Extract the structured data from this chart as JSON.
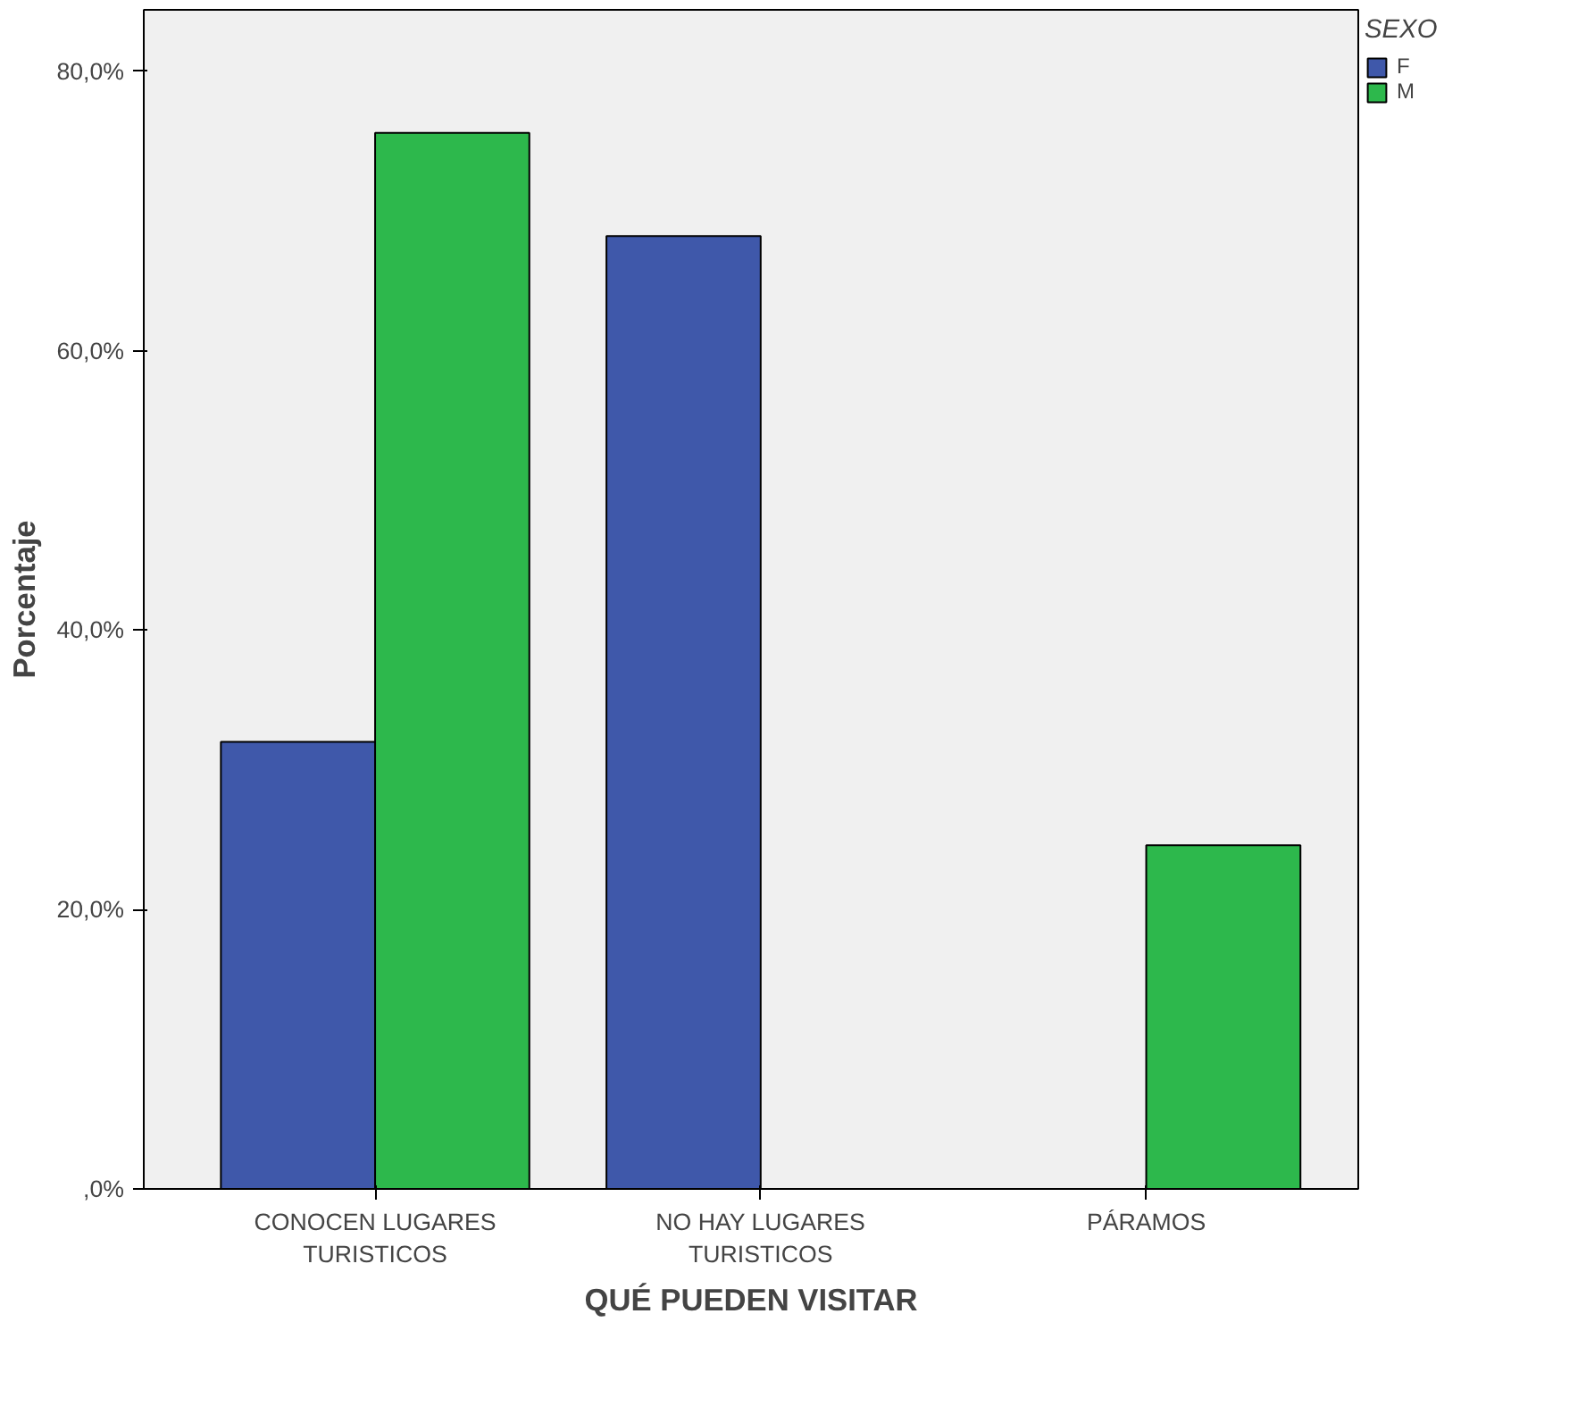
{
  "chart_data": {
    "type": "bar",
    "xlabel": "QUÉ PUEDEN VISITAR",
    "ylabel": "Porcentaje",
    "legend_title": "SEXO",
    "legend": "right",
    "grid": false,
    "categories": [
      "CONOCEN LUGARES\nTURISTICOS",
      "NO HAY LUGARES\nTURISTICOS",
      "PÁRAMOS"
    ],
    "series": [
      {
        "name": "F",
        "color": "#3f58aa",
        "values": [
          32.0,
          68.2,
          0
        ]
      },
      {
        "name": "M",
        "color": "#2db84c",
        "values": [
          75.6,
          0,
          24.6
        ]
      }
    ],
    "ylim": [
      0,
      84.4
    ],
    "yticks": [
      {
        "value": 0,
        "label": ",0%"
      },
      {
        "value": 20,
        "label": "20,0%"
      },
      {
        "value": 40,
        "label": "40,0%"
      },
      {
        "value": 60,
        "label": "60,0%"
      },
      {
        "value": 80,
        "label": "80,0%"
      }
    ]
  }
}
